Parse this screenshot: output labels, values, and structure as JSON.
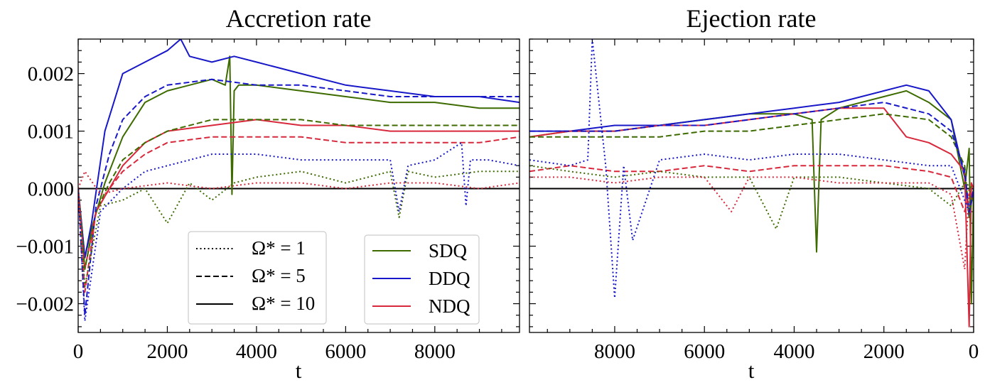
{
  "chart_data": [
    {
      "type": "line",
      "title": "Accretion rate",
      "xlabel": "t",
      "ylabel": "",
      "xlim": [
        0,
        9900
      ],
      "ylim": [
        -0.0025,
        0.0026
      ],
      "xreversed": false,
      "xticks": [
        0,
        2000,
        4000,
        6000,
        8000
      ],
      "xtick_labels": [
        "0",
        "2000",
        "4000",
        "6000",
        "8000"
      ],
      "yticks": [
        -0.002,
        -0.001,
        0,
        0.001,
        0.002
      ],
      "ytick_labels": [
        "−0.002",
        "−0.001",
        "0.000",
        "0.001",
        "0.002"
      ],
      "zero_line": true,
      "series": [
        {
          "name": "SDQ Ω*=10",
          "color": "#3d6b00",
          "style": "solid",
          "x": [
            0,
            150,
            300,
            600,
            1000,
            1500,
            2000,
            2500,
            3000,
            3300,
            3400,
            3450,
            3500,
            3600,
            4000,
            5000,
            6000,
            7000,
            8000,
            9000,
            9900
          ],
          "y": [
            0,
            -0.0012,
            -0.0007,
            0.0001,
            0.0009,
            0.0015,
            0.0017,
            0.0018,
            0.0019,
            0.0018,
            0.0023,
            -0.0001,
            0.0017,
            0.0018,
            0.0018,
            0.0017,
            0.0016,
            0.0015,
            0.0015,
            0.0014,
            0.0014
          ]
        },
        {
          "name": "DDQ Ω*=10",
          "color": "#1818c8",
          "style": "solid",
          "x": [
            0,
            150,
            300,
            600,
            1000,
            1500,
            2000,
            2300,
            2500,
            3000,
            3500,
            4000,
            5000,
            6000,
            7000,
            8000,
            9000,
            9900
          ],
          "y": [
            0,
            -0.0012,
            -0.0006,
            0.001,
            0.002,
            0.0022,
            0.0024,
            0.0026,
            0.0023,
            0.0022,
            0.0023,
            0.0022,
            0.002,
            0.0018,
            0.0017,
            0.0016,
            0.0016,
            0.0015
          ]
        },
        {
          "name": "NDQ Ω*=10",
          "color": "#d8283c",
          "style": "solid",
          "x": [
            0,
            150,
            400,
            700,
            1000,
            1500,
            2000,
            3000,
            4000,
            5000,
            6000,
            7000,
            8000,
            9000,
            9900
          ],
          "y": [
            0,
            -0.0014,
            -0.0004,
            0.0,
            0.0004,
            0.0008,
            0.001,
            0.0011,
            0.0012,
            0.0011,
            0.0011,
            0.001,
            0.001,
            0.001,
            0.001
          ]
        },
        {
          "name": "SDQ Ω*=5",
          "color": "#3d6b00",
          "style": "dashed",
          "x": [
            0,
            150,
            400,
            700,
            1000,
            1500,
            2000,
            3000,
            4000,
            5000,
            6000,
            7000,
            8000,
            9000,
            9900
          ],
          "y": [
            0,
            -0.0014,
            -0.0004,
            0.0001,
            0.0005,
            0.0008,
            0.001,
            0.0012,
            0.0012,
            0.0012,
            0.0011,
            0.0011,
            0.0011,
            0.0011,
            0.0011
          ]
        },
        {
          "name": "DDQ Ω*=5",
          "color": "#1818c8",
          "style": "dashed",
          "x": [
            0,
            150,
            400,
            700,
            1000,
            1500,
            2000,
            3000,
            4000,
            5000,
            6000,
            7000,
            8000,
            9000,
            9900
          ],
          "y": [
            0,
            -0.0022,
            -0.0003,
            0.0006,
            0.0012,
            0.0016,
            0.0018,
            0.0019,
            0.0018,
            0.0018,
            0.0017,
            0.0016,
            0.0016,
            0.0016,
            0.0016
          ]
        },
        {
          "name": "NDQ Ω*=5",
          "color": "#d8283c",
          "style": "dashed",
          "x": [
            0,
            150,
            400,
            700,
            1000,
            1500,
            2000,
            3000,
            4000,
            5000,
            6000,
            7000,
            8000,
            9000,
            9900
          ],
          "y": [
            0,
            -0.0018,
            -0.0004,
            0.0,
            0.0003,
            0.0006,
            0.0008,
            0.0009,
            0.0009,
            0.0009,
            0.0008,
            0.0008,
            0.0008,
            0.0008,
            0.0009
          ]
        },
        {
          "name": "SDQ Ω*=1",
          "color": "#3d6b00",
          "style": "dotted",
          "x": [
            0,
            150,
            500,
            1000,
            1500,
            2000,
            2500,
            3000,
            3500,
            4000,
            5000,
            6000,
            7000,
            7200,
            7400,
            8000,
            9000,
            9900
          ],
          "y": [
            0,
            -0.0017,
            -0.0003,
            -0.0002,
            0.0,
            -0.0006,
            0.0001,
            -0.0002,
            0.0001,
            0.0002,
            0.0003,
            0.0001,
            0.0003,
            -0.0005,
            0.0003,
            0.0002,
            0.0003,
            0.0003
          ]
        },
        {
          "name": "DDQ Ω*=1",
          "color": "#1818c8",
          "style": "dotted",
          "x": [
            0,
            150,
            500,
            1000,
            1500,
            2000,
            3000,
            4000,
            5000,
            6000,
            7000,
            7200,
            7400,
            8000,
            8600,
            8700,
            8800,
            9200,
            9900
          ],
          "y": [
            0,
            -0.0023,
            -0.0004,
            0.0,
            0.0003,
            0.0004,
            0.0006,
            0.0006,
            0.0005,
            0.0005,
            0.0005,
            -0.0004,
            0.0004,
            0.0005,
            0.0008,
            -0.0003,
            0.0005,
            0.0005,
            0.0004
          ]
        },
        {
          "name": "NDQ Ω*=1",
          "color": "#d8283c",
          "style": "dotted",
          "x": [
            0,
            150,
            500,
            1000,
            2000,
            3000,
            4000,
            5000,
            6000,
            7000,
            8000,
            9000,
            9900
          ],
          "y": [
            0,
            0.0003,
            -0.0001,
            0.0,
            0.0001,
            0.0,
            0.0001,
            0.0001,
            0.0,
            0.0001,
            0.0001,
            0.0,
            0.0001
          ]
        }
      ]
    },
    {
      "type": "line",
      "title": "Ejection rate",
      "xlabel": "t",
      "ylabel": "",
      "xlim": [
        9900,
        0
      ],
      "ylim": [
        -0.0025,
        0.0026
      ],
      "xreversed": true,
      "xticks": [
        8000,
        6000,
        4000,
        2000,
        0
      ],
      "xtick_labels": [
        "8000",
        "6000",
        "4000",
        "2000",
        "0"
      ],
      "zero_line": true,
      "series": [
        {
          "name": "SDQ Ω*=10",
          "color": "#3d6b00",
          "style": "solid",
          "x": [
            9900,
            9000,
            8000,
            7000,
            6000,
            5000,
            4000,
            3600,
            3500,
            3400,
            3000,
            2000,
            1500,
            1000,
            500,
            200,
            100,
            50,
            0
          ],
          "y": [
            0.0009,
            0.001,
            0.001,
            0.0011,
            0.0012,
            0.0013,
            0.0013,
            0.0012,
            -0.0011,
            0.0012,
            0.0014,
            0.0016,
            0.0017,
            0.0015,
            0.0012,
            0.0,
            0.0007,
            -0.002,
            0.0
          ]
        },
        {
          "name": "DDQ Ω*=10",
          "color": "#1818c8",
          "style": "solid",
          "x": [
            9900,
            9000,
            8000,
            7000,
            6000,
            5000,
            4000,
            3000,
            2000,
            1500,
            1000,
            500,
            200,
            100,
            0
          ],
          "y": [
            0.001,
            0.001,
            0.0011,
            0.0011,
            0.0012,
            0.0013,
            0.0014,
            0.0015,
            0.0017,
            0.0018,
            0.0017,
            0.0012,
            0.0002,
            -0.0005,
            0.0
          ]
        },
        {
          "name": "NDQ Ω*=10",
          "color": "#d8283c",
          "style": "solid",
          "x": [
            9900,
            9000,
            8000,
            7000,
            6000,
            5000,
            4000,
            3000,
            2000,
            1500,
            1000,
            500,
            200,
            100,
            50,
            0
          ],
          "y": [
            0.0009,
            0.001,
            0.001,
            0.0011,
            0.0011,
            0.0012,
            0.0013,
            0.0014,
            0.0014,
            0.0009,
            0.0008,
            0.0006,
            0.0003,
            -0.0024,
            0.0001,
            0.0
          ]
        },
        {
          "name": "SDQ Ω*=5",
          "color": "#3d6b00",
          "style": "dashed",
          "x": [
            9900,
            9000,
            8000,
            7000,
            6000,
            5000,
            4000,
            3000,
            2000,
            1000,
            500,
            200,
            100,
            0
          ],
          "y": [
            0.0009,
            0.0009,
            0.0009,
            0.0009,
            0.001,
            0.001,
            0.0011,
            0.0012,
            0.0013,
            0.0012,
            0.0009,
            0.0004,
            -0.0005,
            0.0
          ]
        },
        {
          "name": "DDQ Ω*=5",
          "color": "#1818c8",
          "style": "dashed",
          "x": [
            9900,
            9000,
            8000,
            7000,
            6000,
            5000,
            4000,
            3000,
            2000,
            1000,
            500,
            200,
            100,
            0
          ],
          "y": [
            0.001,
            0.001,
            0.001,
            0.0011,
            0.0011,
            0.0012,
            0.0013,
            0.0014,
            0.0015,
            0.0013,
            0.001,
            0.0003,
            -0.0004,
            0.0
          ]
        },
        {
          "name": "NDQ Ω*=5",
          "color": "#d8283c",
          "style": "dashed",
          "x": [
            9900,
            9000,
            8000,
            7000,
            6000,
            5000,
            4000,
            3000,
            2000,
            1000,
            500,
            200,
            100,
            0
          ],
          "y": [
            0.0003,
            0.0004,
            0.0003,
            0.0003,
            0.0004,
            0.0003,
            0.0004,
            0.0004,
            0.0004,
            0.0003,
            0.0002,
            -0.0004,
            -0.0001,
            0.0
          ]
        },
        {
          "name": "SDQ Ω*=1",
          "color": "#3d6b00",
          "style": "dotted",
          "x": [
            9900,
            9000,
            8000,
            7000,
            6000,
            5000,
            4400,
            4000,
            3000,
            2000,
            1000,
            500,
            200,
            0
          ],
          "y": [
            0.0004,
            0.0003,
            0.0002,
            0.0003,
            0.0002,
            0.0002,
            -0.0007,
            0.0002,
            0.0002,
            0.0001,
            0.0,
            -0.0003,
            0.0001,
            0.0
          ]
        },
        {
          "name": "DDQ Ω*=1",
          "color": "#1818c8",
          "style": "dotted",
          "x": [
            9900,
            9000,
            8600,
            8500,
            8200,
            8000,
            7800,
            7600,
            7000,
            6000,
            5000,
            4000,
            3000,
            2000,
            1000,
            500,
            100,
            0
          ],
          "y": [
            0.0005,
            0.0004,
            0.0005,
            0.0026,
            0.0004,
            -0.0019,
            0.0004,
            -0.0009,
            0.0005,
            0.0006,
            0.0005,
            0.0006,
            0.0006,
            0.0005,
            0.0004,
            0.0004,
            -0.0004,
            0.0
          ]
        },
        {
          "name": "NDQ Ω*=1",
          "color": "#d8283c",
          "style": "dotted",
          "x": [
            9900,
            9000,
            8000,
            7000,
            6000,
            5400,
            5000,
            4000,
            3000,
            2000,
            1000,
            500,
            200,
            100,
            0
          ],
          "y": [
            0.0002,
            0.0002,
            0.0001,
            0.0002,
            0.0002,
            -0.0004,
            0.0002,
            0.0002,
            0.0001,
            0.0001,
            0.0001,
            -0.0001,
            -0.0014,
            0.0,
            0.0
          ]
        }
      ]
    }
  ],
  "legend_styles": {
    "title": "",
    "items": [
      {
        "label": "Ω* = 1",
        "style": "dotted"
      },
      {
        "label": "Ω* = 5",
        "style": "dashed"
      },
      {
        "label": "Ω* = 10",
        "style": "solid"
      }
    ]
  },
  "legend_models": {
    "items": [
      {
        "label": "SDQ",
        "color": "#3d6b00"
      },
      {
        "label": "DDQ",
        "color": "#1818c8"
      },
      {
        "label": "NDQ",
        "color": "#d8283c"
      }
    ]
  }
}
